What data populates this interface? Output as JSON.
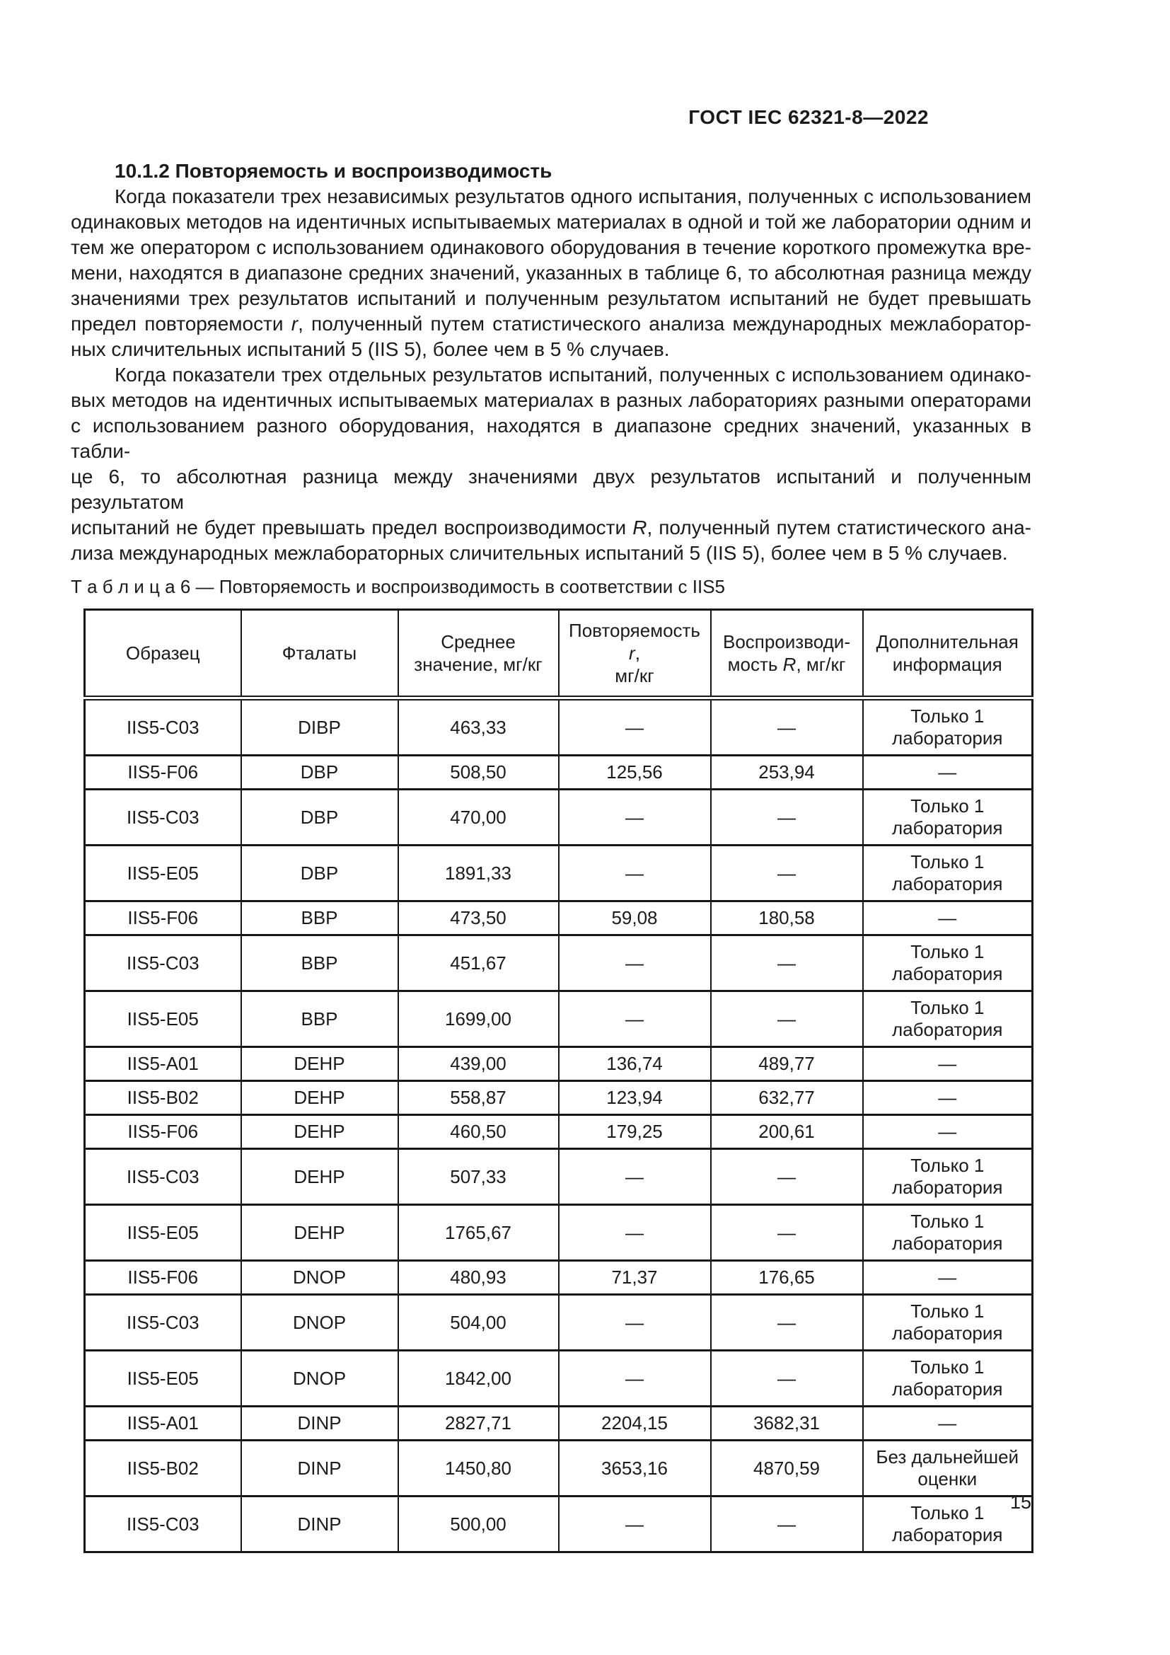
{
  "page": {
    "header": "ГОСТ IEC 62321-8—2022",
    "page_number": "15"
  },
  "section": {
    "heading": "10.1.2 Повторяемость и воспроизводимость",
    "paragraphs": [
      {
        "lines": [
          [
            "Когда показатели трех независимых результатов одного испытания, полученных с использованием"
          ],
          [
            "одинаковых методов на идентичных испытываемых материалах в одной и той же лаборатории одним и"
          ],
          [
            "тем же оператором с использованием одинакового оборудования в течение короткого промежутка вре-"
          ],
          [
            "мени, находятся в диапазоне средних значений, указанных в таблице 6, то абсолютная разница между"
          ],
          [
            "значениями трех результатов испытаний и полученным результатом испытаний не будет превышать"
          ],
          [
            "предел повторяемости ",
            {
              "i": "r"
            },
            ", полученный путем статистического анализа международных межлаборатор-"
          ],
          [
            "ных сличительных испытаний 5 (IIS 5), более чем в 5 % случаев."
          ]
        ]
      },
      {
        "lines": [
          [
            "Когда показатели трех отдельных результатов испытаний, полученных с использованием одинако-"
          ],
          [
            "вых методов на идентичных испытываемых материалах в разных лабораториях разными операторами"
          ],
          [
            "с использованием разного оборудования, находятся в диапазоне средних значений, указанных в табли-"
          ],
          [
            "це 6, то абсолютная разница между значениями двух результатов испытаний и полученным результатом"
          ],
          [
            "испытаний не будет превышать предел воспроизводимости ",
            {
              "i": "R"
            },
            ", полученный путем статистического ана-"
          ],
          [
            "лиза международных межлабораторных сличительных испытаний 5 (IIS 5), более чем в 5 % случаев."
          ]
        ]
      }
    ]
  },
  "table": {
    "caption": "Т а б л и ц а  6 — Повторяемость и воспроизводимость в соответствии с IIS5",
    "columns": [
      {
        "lines": [
          [
            "Образец"
          ]
        ]
      },
      {
        "lines": [
          [
            "Фталаты"
          ]
        ]
      },
      {
        "lines": [
          [
            "Среднее"
          ],
          [
            "значение, мг/кг"
          ]
        ]
      },
      {
        "lines": [
          [
            "Повторяемость ",
            {
              "i": "r"
            },
            ","
          ],
          [
            "мг/кг"
          ]
        ]
      },
      {
        "lines": [
          [
            "Воспроизводи-"
          ],
          [
            "мость ",
            {
              "i": "R"
            },
            ", мг/кг"
          ]
        ]
      },
      {
        "lines": [
          [
            "Дополнительная"
          ],
          [
            "информация"
          ]
        ]
      }
    ],
    "rows": [
      [
        "IIS5-C03",
        "DIBP",
        "463,33",
        "—",
        "—",
        "Только 1 лаборатория"
      ],
      [
        "IIS5-F06",
        "DBP",
        "508,50",
        "125,56",
        "253,94",
        "—"
      ],
      [
        "IIS5-C03",
        "DBP",
        "470,00",
        "—",
        "—",
        "Только 1 лаборатория"
      ],
      [
        "IIS5-E05",
        "DBP",
        "1891,33",
        "—",
        "—",
        "Только 1 лаборатория"
      ],
      [
        "IIS5-F06",
        "BBP",
        "473,50",
        "59,08",
        "180,58",
        "—"
      ],
      [
        "IIS5-C03",
        "BBP",
        "451,67",
        "—",
        "—",
        "Только 1 лаборатория"
      ],
      [
        "IIS5-E05",
        "BBP",
        "1699,00",
        "—",
        "—",
        "Только 1 лаборатория"
      ],
      [
        "IIS5-A01",
        "DEHP",
        "439,00",
        "136,74",
        "489,77",
        "—"
      ],
      [
        "IIS5-B02",
        "DEHP",
        "558,87",
        "123,94",
        "632,77",
        "—"
      ],
      [
        "IIS5-F06",
        "DEHP",
        "460,50",
        "179,25",
        "200,61",
        "—"
      ],
      [
        "IIS5-C03",
        "DEHP",
        "507,33",
        "—",
        "—",
        "Только 1 лаборатория"
      ],
      [
        "IIS5-E05",
        "DEHP",
        "1765,67",
        "—",
        "—",
        "Только 1 лаборатория"
      ],
      [
        "IIS5-F06",
        "DNOP",
        "480,93",
        "71,37",
        "176,65",
        "—"
      ],
      [
        "IIS5-C03",
        "DNOP",
        "504,00",
        "—",
        "—",
        "Только 1 лаборатория"
      ],
      [
        "IIS5-E05",
        "DNOP",
        "1842,00",
        "—",
        "—",
        "Только 1 лаборатория"
      ],
      [
        "IIS5-A01",
        "DINP",
        "2827,71",
        "2204,15",
        "3682,31",
        "—"
      ],
      [
        "IIS5-B02",
        "DINP",
        "1450,80",
        "3653,16",
        "4870,59",
        "Без дальнейшей оценки"
      ],
      [
        "IIS5-C03",
        "DINP",
        "500,00",
        "—",
        "—",
        "Только 1 лаборатория"
      ]
    ]
  }
}
